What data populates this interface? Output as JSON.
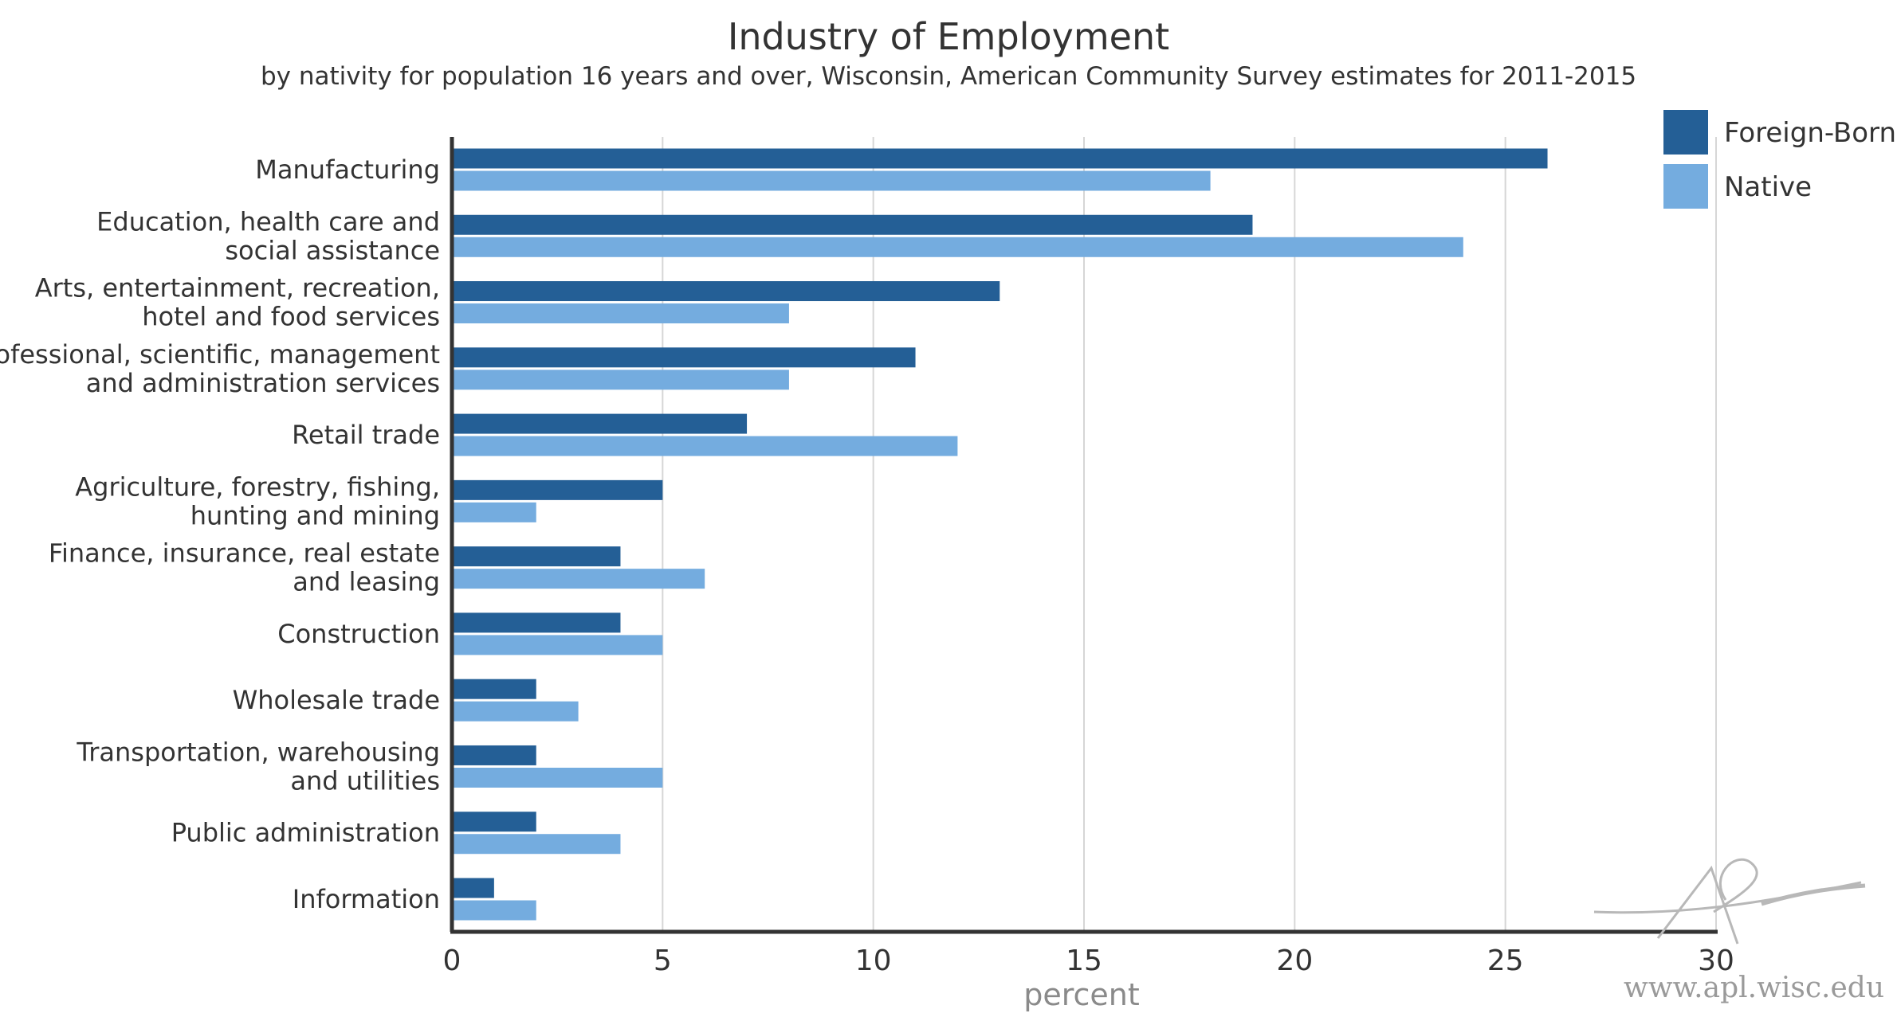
{
  "chart_data": {
    "type": "bar",
    "orientation": "horizontal",
    "title": "Industry of Employment",
    "subtitle": "by nativity for population 16 years and over, Wisconsin, American Community Survey estimates for 2011-2015",
    "xlabel": "percent",
    "ylabel": "",
    "xlim": [
      0,
      30
    ],
    "xticks": [
      0,
      5,
      10,
      15,
      20,
      25,
      30
    ],
    "grid": "vertical",
    "legend_position": "top-right",
    "categories": [
      [
        "Manufacturing"
      ],
      [
        "Education, health care and",
        "social assistance"
      ],
      [
        "Arts, entertainment, recreation,",
        "hotel and food services"
      ],
      [
        "Professional, scientific, management",
        "and administration services"
      ],
      [
        "Retail trade"
      ],
      [
        "Agriculture, forestry, fishing,",
        "hunting and mining"
      ],
      [
        "Finance, insurance, real estate",
        "and leasing"
      ],
      [
        "Construction"
      ],
      [
        "Wholesale trade"
      ],
      [
        "Transportation, warehousing",
        "and utilities"
      ],
      [
        "Public administration"
      ],
      [
        "Information"
      ]
    ],
    "series": [
      {
        "name": "Foreign-Born",
        "color": "#245f96",
        "values": [
          26,
          19,
          13,
          11,
          7,
          5,
          4,
          4,
          2,
          2,
          2,
          1
        ]
      },
      {
        "name": "Native",
        "color": "#74acdf",
        "values": [
          18,
          24,
          8,
          8,
          12,
          2,
          6,
          5,
          3,
          5,
          4,
          2
        ]
      }
    ]
  },
  "watermark": {
    "text": "www.apl.wisc.edu",
    "logo": "apl-logo"
  }
}
